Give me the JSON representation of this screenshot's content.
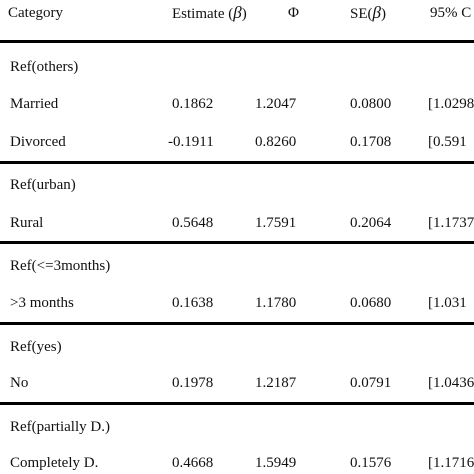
{
  "table": {
    "header": {
      "category": "Category",
      "estimate": "Estimate (",
      "estimate_sym": "β",
      "estimate_close": ")",
      "phi": "Φ",
      "se": "SE(",
      "se_sym": "β",
      "se_close": ")",
      "ci": "95% C"
    },
    "groups": [
      {
        "ref": "Ref(others)",
        "rows": [
          {
            "label": "Married",
            "estimate": "0.1862",
            "phi": "1.2047",
            "se": "0.0800",
            "ci": "[1.0298"
          },
          {
            "label": "Divorced",
            "estimate": "-0.1911",
            "phi": "0.8260",
            "se": "0.1708",
            "ci": "[0.591"
          }
        ]
      },
      {
        "ref": "Ref(urban)",
        "rows": [
          {
            "label": "Rural",
            "estimate": "0.5648",
            "phi": "1.7591",
            "se": "0.2064",
            "ci": "[1.1737"
          }
        ]
      },
      {
        "ref": "Ref(<=3months)",
        "rows": [
          {
            "label": ">3 months",
            "estimate": "0.1638",
            "phi": "1.1780",
            "se": "0.0680",
            "ci": "[1.031"
          }
        ]
      },
      {
        "ref": "Ref(yes)",
        "rows": [
          {
            "label": "No",
            "estimate": "0.1978",
            "phi": "1.2187",
            "se": "0.0791",
            "ci": "[1.0436"
          }
        ]
      },
      {
        "ref": "Ref(partially D.)",
        "rows": [
          {
            "label": "Completely D.",
            "estimate": "0.4668",
            "phi": "1.5949",
            "se": "0.1576",
            "ci": "[1.1716"
          }
        ]
      }
    ]
  }
}
